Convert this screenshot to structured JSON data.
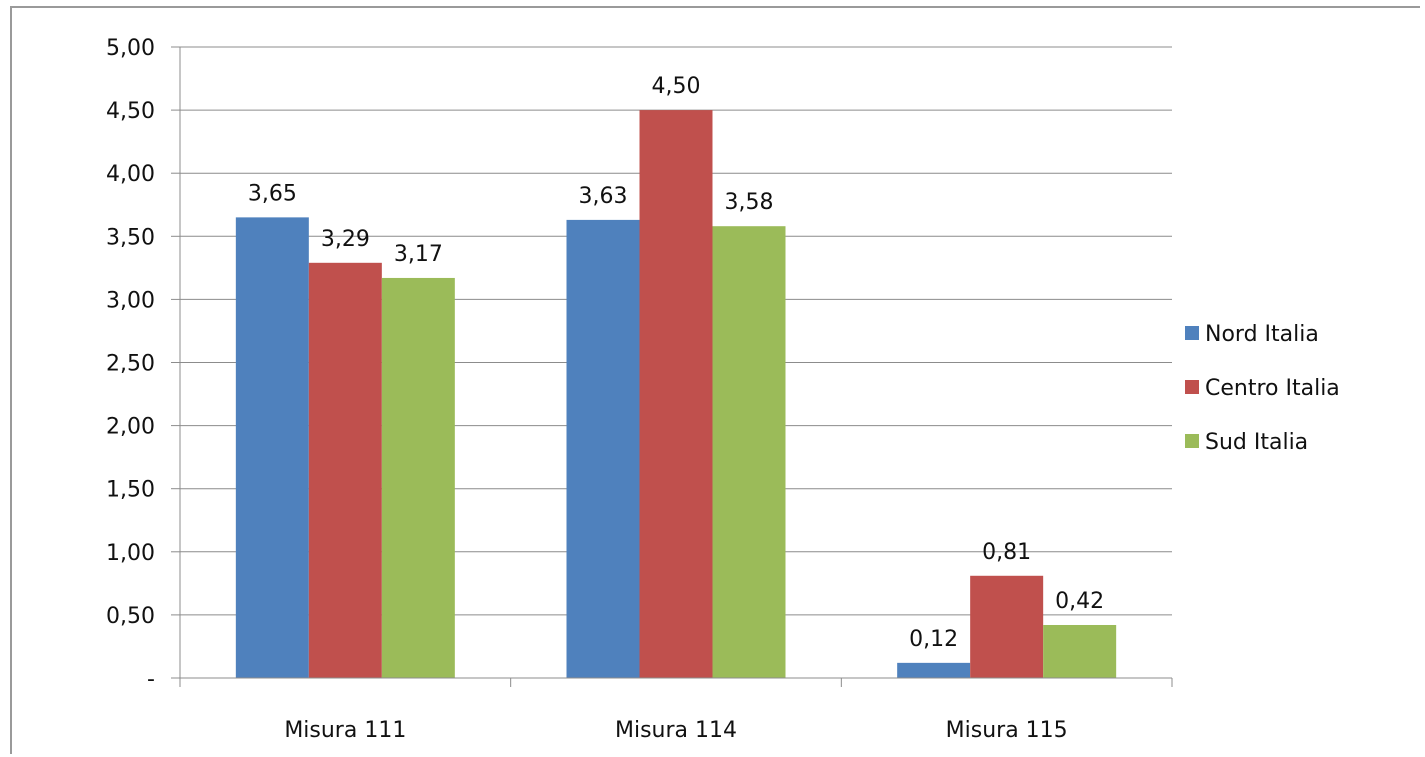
{
  "chart_data": {
    "type": "bar",
    "title": "",
    "xlabel": "",
    "ylabel": "",
    "ylim": [
      0,
      5
    ],
    "yticks": [
      0,
      0.5,
      1,
      1.5,
      2,
      2.5,
      3,
      3.5,
      4,
      4.5,
      5
    ],
    "ytick_labels": [
      "-",
      "0,50",
      "1,00",
      "1,50",
      "2,00",
      "2,50",
      "3,00",
      "3,50",
      "4,00",
      "4,50",
      "5,00"
    ],
    "grid": true,
    "legend": "right",
    "categories": [
      "Misura 111",
      "Misura 114",
      "Misura 115"
    ],
    "series": [
      {
        "name": "Nord Italia",
        "color": "#4f81bd",
        "values": [
          3.65,
          3.63,
          0.12
        ],
        "labels": [
          "3,65",
          "3,63",
          "0,12"
        ]
      },
      {
        "name": "Centro Italia",
        "color": "#c0504d",
        "values": [
          3.29,
          4.5,
          0.81
        ],
        "labels": [
          "3,29",
          "4,50",
          "0,81"
        ]
      },
      {
        "name": "Sud Italia",
        "color": "#9bbb59",
        "values": [
          3.17,
          3.58,
          0.42
        ],
        "labels": [
          "3,17",
          "3,58",
          "0,42"
        ]
      }
    ]
  }
}
